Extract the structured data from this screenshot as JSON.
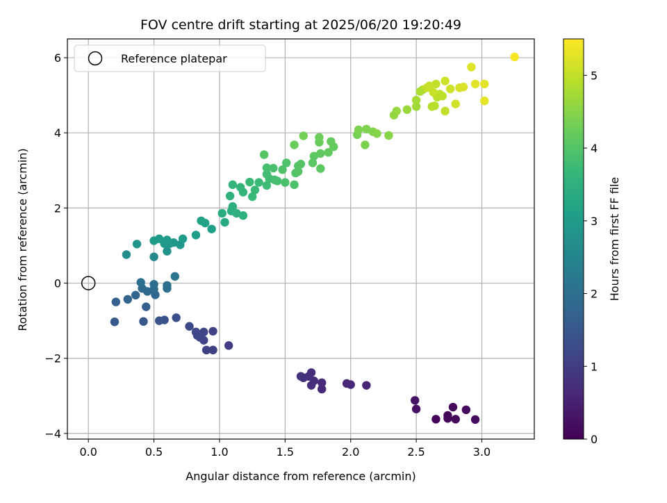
{
  "chart_data": {
    "type": "scatter",
    "title": "FOV centre drift starting at 2025/06/20 19:20:49",
    "xlabel": "Angular distance from reference (arcmin)",
    "ylabel": "Rotation from reference (arcmin)",
    "xlim": [
      -0.16,
      3.4
    ],
    "ylim": [
      -4.15,
      6.5
    ],
    "xticks": [
      0.0,
      0.5,
      1.0,
      1.5,
      2.0,
      2.5,
      3.0
    ],
    "yticks": [
      -4,
      -2,
      0,
      2,
      4,
      6
    ],
    "grid": true,
    "legend": {
      "placement": "top-left",
      "entries": [
        "Reference platepar"
      ]
    },
    "reference_point": {
      "x": 0.0,
      "y": 0.0
    },
    "colorbar": {
      "label": "Hours from first FF file",
      "range": [
        0,
        5.5
      ],
      "ticks": [
        0,
        1,
        2,
        3,
        4,
        5
      ],
      "colormap": "viridis"
    },
    "points": [
      {
        "x": 2.65,
        "y": -3.62,
        "t": 0.05
      },
      {
        "x": 2.74,
        "y": -3.52,
        "t": 0.08
      },
      {
        "x": 2.74,
        "y": -3.6,
        "t": 0.1
      },
      {
        "x": 2.8,
        "y": -3.62,
        "t": 0.12
      },
      {
        "x": 2.78,
        "y": -3.3,
        "t": 0.14
      },
      {
        "x": 2.88,
        "y": -3.37,
        "t": 0.16
      },
      {
        "x": 2.95,
        "y": -3.63,
        "t": 0.18
      },
      {
        "x": 2.5,
        "y": -3.35,
        "t": 0.25
      },
      {
        "x": 2.49,
        "y": -3.12,
        "t": 0.3
      },
      {
        "x": 2.12,
        "y": -2.72,
        "t": 0.55
      },
      {
        "x": 1.97,
        "y": -2.67,
        "t": 0.6
      },
      {
        "x": 2.0,
        "y": -2.7,
        "t": 0.62
      },
      {
        "x": 1.78,
        "y": -2.82,
        "t": 0.65
      },
      {
        "x": 1.78,
        "y": -2.65,
        "t": 0.68
      },
      {
        "x": 1.72,
        "y": -2.6,
        "t": 0.7
      },
      {
        "x": 1.7,
        "y": -2.38,
        "t": 0.72
      },
      {
        "x": 1.7,
        "y": -2.72,
        "t": 0.74
      },
      {
        "x": 1.68,
        "y": -2.48,
        "t": 0.76
      },
      {
        "x": 1.64,
        "y": -2.52,
        "t": 0.78
      },
      {
        "x": 1.62,
        "y": -2.48,
        "t": 0.8
      },
      {
        "x": 1.07,
        "y": -1.66,
        "t": 1.0
      },
      {
        "x": 0.95,
        "y": -1.78,
        "t": 1.05
      },
      {
        "x": 0.9,
        "y": -1.78,
        "t": 1.08
      },
      {
        "x": 0.95,
        "y": -1.28,
        "t": 1.1
      },
      {
        "x": 0.88,
        "y": -1.52,
        "t": 1.12
      },
      {
        "x": 0.88,
        "y": -1.3,
        "t": 1.14
      },
      {
        "x": 0.85,
        "y": -1.44,
        "t": 1.16
      },
      {
        "x": 0.83,
        "y": -1.39,
        "t": 1.18
      },
      {
        "x": 0.82,
        "y": -1.3,
        "t": 1.2
      },
      {
        "x": 0.77,
        "y": -1.15,
        "t": 1.25
      },
      {
        "x": 0.67,
        "y": -0.92,
        "t": 1.35
      },
      {
        "x": 0.58,
        "y": -0.98,
        "t": 1.4
      },
      {
        "x": 0.54,
        "y": -1.0,
        "t": 1.45
      },
      {
        "x": 0.42,
        "y": -1.02,
        "t": 1.5
      },
      {
        "x": 0.2,
        "y": -1.03,
        "t": 1.55
      },
      {
        "x": 0.44,
        "y": -0.63,
        "t": 1.65
      },
      {
        "x": 0.21,
        "y": -0.5,
        "t": 1.7
      },
      {
        "x": 0.3,
        "y": -0.43,
        "t": 1.75
      },
      {
        "x": 0.36,
        "y": -0.32,
        "t": 1.8
      },
      {
        "x": 0.51,
        "y": -0.31,
        "t": 1.82
      },
      {
        "x": 0.45,
        "y": -0.22,
        "t": 1.85
      },
      {
        "x": 0.41,
        "y": -0.14,
        "t": 1.9
      },
      {
        "x": 0.5,
        "y": -0.16,
        "t": 1.92
      },
      {
        "x": 0.5,
        "y": -0.03,
        "t": 1.95
      },
      {
        "x": 0.6,
        "y": -0.14,
        "t": 1.98
      },
      {
        "x": 0.6,
        "y": -0.06,
        "t": 2.0
      },
      {
        "x": 0.4,
        "y": 0.02,
        "t": 2.05
      },
      {
        "x": 0.66,
        "y": 0.18,
        "t": 2.15
      },
      {
        "x": 0.5,
        "y": 0.7,
        "t": 2.6
      },
      {
        "x": 0.29,
        "y": 0.76,
        "t": 2.7
      },
      {
        "x": 0.6,
        "y": 0.85,
        "t": 2.8
      },
      {
        "x": 0.37,
        "y": 1.04,
        "t": 2.85
      },
      {
        "x": 0.7,
        "y": 1.02,
        "t": 2.88
      },
      {
        "x": 0.58,
        "y": 1.05,
        "t": 2.9
      },
      {
        "x": 0.62,
        "y": 1.05,
        "t": 2.92
      },
      {
        "x": 0.65,
        "y": 1.08,
        "t": 2.94
      },
      {
        "x": 0.6,
        "y": 1.15,
        "t": 2.96
      },
      {
        "x": 0.5,
        "y": 1.13,
        "t": 2.98
      },
      {
        "x": 0.54,
        "y": 1.18,
        "t": 3.0
      },
      {
        "x": 0.72,
        "y": 1.18,
        "t": 3.02
      },
      {
        "x": 0.82,
        "y": 1.28,
        "t": 3.05
      },
      {
        "x": 0.94,
        "y": 1.44,
        "t": 3.1
      },
      {
        "x": 0.89,
        "y": 1.6,
        "t": 3.15
      },
      {
        "x": 0.86,
        "y": 1.66,
        "t": 3.18
      },
      {
        "x": 1.04,
        "y": 1.62,
        "t": 3.3
      },
      {
        "x": 1.02,
        "y": 1.86,
        "t": 3.4
      },
      {
        "x": 1.09,
        "y": 1.92,
        "t": 3.42
      },
      {
        "x": 1.1,
        "y": 2.04,
        "t": 3.45
      },
      {
        "x": 1.13,
        "y": 1.86,
        "t": 3.48
      },
      {
        "x": 1.18,
        "y": 1.8,
        "t": 3.5
      },
      {
        "x": 1.08,
        "y": 2.32,
        "t": 3.55
      },
      {
        "x": 1.1,
        "y": 2.62,
        "t": 3.6
      },
      {
        "x": 1.16,
        "y": 2.55,
        "t": 3.62
      },
      {
        "x": 1.18,
        "y": 2.42,
        "t": 3.64
      },
      {
        "x": 1.25,
        "y": 2.3,
        "t": 3.68
      },
      {
        "x": 1.27,
        "y": 2.48,
        "t": 3.7
      },
      {
        "x": 1.23,
        "y": 2.69,
        "t": 3.72
      },
      {
        "x": 1.3,
        "y": 2.68,
        "t": 3.74
      },
      {
        "x": 1.36,
        "y": 2.6,
        "t": 3.76
      },
      {
        "x": 1.38,
        "y": 2.78,
        "t": 3.78
      },
      {
        "x": 1.36,
        "y": 2.9,
        "t": 3.8
      },
      {
        "x": 1.42,
        "y": 2.75,
        "t": 3.82
      },
      {
        "x": 1.44,
        "y": 2.72,
        "t": 3.84
      },
      {
        "x": 1.36,
        "y": 3.07,
        "t": 3.86
      },
      {
        "x": 1.41,
        "y": 3.06,
        "t": 3.88
      },
      {
        "x": 1.5,
        "y": 2.68,
        "t": 3.9
      },
      {
        "x": 1.57,
        "y": 2.62,
        "t": 3.92
      },
      {
        "x": 1.48,
        "y": 3.02,
        "t": 3.94
      },
      {
        "x": 1.51,
        "y": 3.2,
        "t": 3.95
      },
      {
        "x": 1.58,
        "y": 2.93,
        "t": 3.96
      },
      {
        "x": 1.6,
        "y": 3.12,
        "t": 3.98
      },
      {
        "x": 1.62,
        "y": 3.17,
        "t": 4.0
      },
      {
        "x": 1.6,
        "y": 2.97,
        "t": 4.02
      },
      {
        "x": 1.34,
        "y": 3.42,
        "t": 4.04
      },
      {
        "x": 1.71,
        "y": 3.2,
        "t": 4.06
      },
      {
        "x": 1.72,
        "y": 3.38,
        "t": 4.08
      },
      {
        "x": 1.77,
        "y": 3.05,
        "t": 4.1
      },
      {
        "x": 1.77,
        "y": 3.45,
        "t": 4.12
      },
      {
        "x": 1.83,
        "y": 3.48,
        "t": 4.14
      },
      {
        "x": 1.87,
        "y": 3.63,
        "t": 4.16
      },
      {
        "x": 1.85,
        "y": 3.77,
        "t": 4.18
      },
      {
        "x": 1.76,
        "y": 3.75,
        "t": 4.2
      },
      {
        "x": 1.57,
        "y": 3.68,
        "t": 4.22
      },
      {
        "x": 1.76,
        "y": 3.88,
        "t": 4.25
      },
      {
        "x": 1.64,
        "y": 3.92,
        "t": 4.3
      },
      {
        "x": 2.05,
        "y": 3.95,
        "t": 4.35
      },
      {
        "x": 2.11,
        "y": 3.68,
        "t": 4.38
      },
      {
        "x": 2.06,
        "y": 4.08,
        "t": 4.4
      },
      {
        "x": 2.12,
        "y": 4.1,
        "t": 4.42
      },
      {
        "x": 2.17,
        "y": 4.03,
        "t": 4.45
      },
      {
        "x": 2.2,
        "y": 3.98,
        "t": 4.48
      },
      {
        "x": 2.29,
        "y": 3.93,
        "t": 4.5
      },
      {
        "x": 2.33,
        "y": 4.47,
        "t": 4.6
      },
      {
        "x": 2.35,
        "y": 4.58,
        "t": 4.62
      },
      {
        "x": 2.43,
        "y": 4.62,
        "t": 4.65
      },
      {
        "x": 2.5,
        "y": 4.7,
        "t": 4.7
      },
      {
        "x": 2.5,
        "y": 4.87,
        "t": 4.75
      },
      {
        "x": 2.53,
        "y": 5.1,
        "t": 4.8
      },
      {
        "x": 2.55,
        "y": 5.15,
        "t": 4.85
      },
      {
        "x": 2.62,
        "y": 4.7,
        "t": 4.88
      },
      {
        "x": 2.64,
        "y": 4.72,
        "t": 4.9
      },
      {
        "x": 2.66,
        "y": 4.95,
        "t": 4.92
      },
      {
        "x": 2.68,
        "y": 5.03,
        "t": 4.94
      },
      {
        "x": 2.7,
        "y": 4.98,
        "t": 4.96
      },
      {
        "x": 2.72,
        "y": 4.58,
        "t": 4.98
      },
      {
        "x": 2.65,
        "y": 5.3,
        "t": 5.0
      },
      {
        "x": 2.6,
        "y": 5.25,
        "t": 5.02
      },
      {
        "x": 2.58,
        "y": 5.2,
        "t": 5.04
      },
      {
        "x": 2.63,
        "y": 5.08,
        "t": 5.06
      },
      {
        "x": 2.72,
        "y": 5.38,
        "t": 5.08
      },
      {
        "x": 2.76,
        "y": 5.17,
        "t": 5.1
      },
      {
        "x": 2.8,
        "y": 4.77,
        "t": 5.12
      },
      {
        "x": 2.83,
        "y": 5.2,
        "t": 5.15
      },
      {
        "x": 2.86,
        "y": 5.22,
        "t": 5.18
      },
      {
        "x": 2.92,
        "y": 5.75,
        "t": 5.22
      },
      {
        "x": 2.95,
        "y": 5.3,
        "t": 5.25
      },
      {
        "x": 3.02,
        "y": 5.3,
        "t": 5.28
      },
      {
        "x": 3.02,
        "y": 4.85,
        "t": 5.3
      },
      {
        "x": 3.25,
        "y": 6.02,
        "t": 5.45
      }
    ]
  },
  "colors": {
    "grid": "#b0b0b0",
    "viridis": [
      "#440154",
      "#482878",
      "#3e4989",
      "#31688e",
      "#26828e",
      "#1f9e89",
      "#35b779",
      "#6ece58",
      "#b5de2b",
      "#fde725"
    ]
  }
}
